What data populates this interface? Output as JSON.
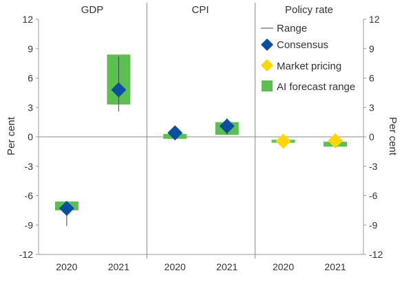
{
  "chart_data": {
    "type": "range-marker",
    "ylabel_left": "Per cent",
    "ylabel_right": "Per cent",
    "ylim": [
      -12,
      12
    ],
    "yticks": [
      "12",
      "9",
      "6",
      "3",
      "0",
      "-3",
      "-6",
      "-9",
      "-12"
    ],
    "ytick_values": [
      12,
      9,
      6,
      3,
      0,
      -3,
      -6,
      -9,
      -12
    ],
    "categories": [
      "2020",
      "2021"
    ],
    "panels": [
      {
        "title": "GDP",
        "points": [
          {
            "year": "2020",
            "range": [
              -9.1,
              -6.7
            ],
            "ai_forecast_range": [
              -7.5,
              -6.6
            ],
            "consensus": -7.3
          },
          {
            "year": "2021",
            "range": [
              2.6,
              8.2
            ],
            "ai_forecast_range": [
              3.3,
              8.4
            ],
            "consensus": 4.8
          }
        ]
      },
      {
        "title": "CPI",
        "points": [
          {
            "year": "2020",
            "range": [
              -0.2,
              0.7
            ],
            "ai_forecast_range": [
              -0.2,
              0.3
            ],
            "consensus": 0.4
          },
          {
            "year": "2021",
            "range": [
              0.2,
              1.9
            ],
            "ai_forecast_range": [
              0.2,
              1.5
            ],
            "consensus": 1.1
          }
        ]
      },
      {
        "title": "Policy rate",
        "points": [
          {
            "year": "2020",
            "range": [
              -0.5,
              -0.4
            ],
            "ai_forecast_range": [
              -0.6,
              -0.3
            ],
            "market_pricing": -0.45
          },
          {
            "year": "2021",
            "range": [
              -1.0,
              -0.3
            ],
            "ai_forecast_range": [
              -1.0,
              -0.5
            ],
            "market_pricing": -0.4
          }
        ]
      }
    ],
    "legend": {
      "placement": "top-right",
      "items": [
        {
          "label": "Range",
          "symbol": "line"
        },
        {
          "label": "Consensus",
          "symbol": "diamond"
        },
        {
          "label": "Market pricing",
          "symbol": "diamond"
        },
        {
          "label": "AI forecast range",
          "symbol": "square"
        }
      ]
    },
    "colors": {
      "range": "#444444",
      "consensus": "#0a4fa0",
      "market_pricing": "#ffd700",
      "ai_forecast_range": "#5cbf52",
      "panel_divider": "#888888",
      "zero_line": "#888888",
      "axis": "#999999"
    }
  }
}
